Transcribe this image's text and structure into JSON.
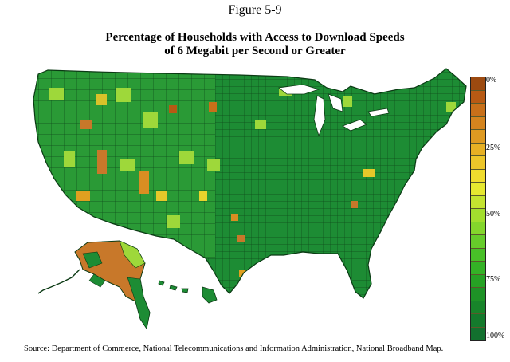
{
  "figure_label": "Figure 5-9",
  "title_line1": "Percentage of Households with Access to Download Speeds",
  "title_line2": "of 6 Megabit per Second or Greater",
  "legend": {
    "ticks": [
      "0%",
      "25%",
      "50%",
      "75%",
      "100%"
    ],
    "colors": [
      "#9c4a10",
      "#b85a14",
      "#c8701a",
      "#d4841e",
      "#de9a22",
      "#e6b024",
      "#ecc62a",
      "#f0dc2e",
      "#e6e830",
      "#c4e430",
      "#a2de2e",
      "#84d62c",
      "#66cc2a",
      "#48c028",
      "#34b226",
      "#26a224",
      "#1e9226",
      "#18842a",
      "#147a2c",
      "#12702e"
    ]
  },
  "map": {
    "regions": [
      "contiguous-us",
      "alaska",
      "hawaii"
    ],
    "dominant_color": "#1a8a32",
    "low_access_color": "#c8782a",
    "mid_access_color": "#9ed83a"
  },
  "source": "Source: Department of Commerce, National Telecommunications and Information Administration, National Broadband Map."
}
